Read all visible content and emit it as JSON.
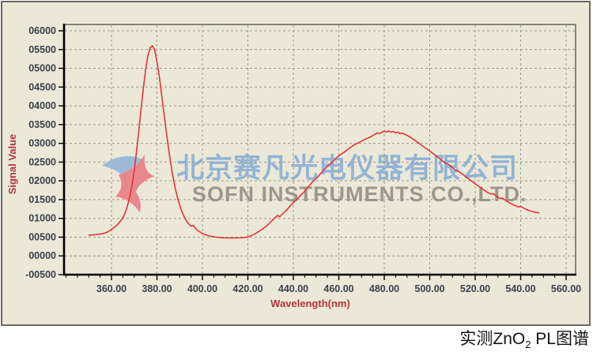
{
  "watermark": {
    "line1": "北京赛凡光电仪器有限公司",
    "line2": "SOFN INSTRUMENTS CO.,LTD.",
    "line1_color": "#84aad2",
    "line2_color": "#948e84",
    "logo_colors": {
      "wing": "#9db9d6",
      "swoosh": "#e8888c"
    }
  },
  "caption": {
    "prefix": "实测ZnO",
    "subscript": "2",
    "suffix": " PL图谱"
  },
  "chart_data": {
    "type": "line",
    "title": "",
    "xlabel": "Wavelength(nm)",
    "ylabel": "Signal Value",
    "grid": true,
    "legend": "none",
    "xlim": [
      339.13,
      564.17
    ],
    "ylim": [
      -500,
      6168
    ],
    "x_minor_tick_step": 5,
    "x_minor_tick_range": [
      340,
      560
    ],
    "x_ticks": [
      {
        "value": 360,
        "label": "360.00"
      },
      {
        "value": 380,
        "label": "380.00"
      },
      {
        "value": 400,
        "label": "400.00"
      },
      {
        "value": 420,
        "label": "420.00"
      },
      {
        "value": 440,
        "label": "440.00"
      },
      {
        "value": 460,
        "label": "460.00"
      },
      {
        "value": 480,
        "label": "480.00"
      },
      {
        "value": 500,
        "label": "500.00"
      },
      {
        "value": 520,
        "label": "520.00"
      },
      {
        "value": 540,
        "label": "540.00"
      },
      {
        "value": 560,
        "label": "560.00"
      }
    ],
    "y_ticks": [
      {
        "value": 6000,
        "label": "06000"
      },
      {
        "value": 5500,
        "label": "05500"
      },
      {
        "value": 5000,
        "label": "05000"
      },
      {
        "value": 4500,
        "label": "04500"
      },
      {
        "value": 4000,
        "label": "04000"
      },
      {
        "value": 3500,
        "label": "03500"
      },
      {
        "value": 3000,
        "label": "03000"
      },
      {
        "value": 2500,
        "label": "02500"
      },
      {
        "value": 2000,
        "label": "02000"
      },
      {
        "value": 1500,
        "label": "01500"
      },
      {
        "value": 1000,
        "label": "01000"
      },
      {
        "value": 500,
        "label": "00500"
      },
      {
        "value": 0,
        "label": "00000"
      },
      {
        "value": -500,
        "label": "-00500"
      }
    ],
    "colors": {
      "curve": "#e5323b",
      "grid": "#9c998c",
      "axis": "#000000",
      "frame": "#45443e",
      "tick_text": "#3a4149",
      "axis_title": "#b5333d",
      "plot_bg": "#ebe8d8"
    },
    "series": [
      {
        "name": "ZnO2 PL signal",
        "color": "#e5323b",
        "points": [
          [
            350,
            552
          ],
          [
            352,
            560
          ],
          [
            354,
            572
          ],
          [
            356,
            592
          ],
          [
            358,
            630
          ],
          [
            360,
            705
          ],
          [
            361,
            750
          ],
          [
            362,
            800
          ],
          [
            363,
            858
          ],
          [
            364,
            930
          ],
          [
            365,
            1015
          ],
          [
            366,
            1150
          ],
          [
            367,
            1330
          ],
          [
            368,
            1565
          ],
          [
            369,
            1870
          ],
          [
            370,
            2260
          ],
          [
            371,
            2770
          ],
          [
            372,
            3320
          ],
          [
            373,
            3920
          ],
          [
            374,
            4460
          ],
          [
            375,
            4950
          ],
          [
            376,
            5330
          ],
          [
            377,
            5545
          ],
          [
            378,
            5600
          ],
          [
            379,
            5490
          ],
          [
            380,
            5180
          ],
          [
            381,
            4790
          ],
          [
            382,
            4320
          ],
          [
            383,
            3845
          ],
          [
            384,
            3360
          ],
          [
            385,
            2905
          ],
          [
            386,
            2480
          ],
          [
            387,
            2120
          ],
          [
            388,
            1815
          ],
          [
            389,
            1560
          ],
          [
            390,
            1350
          ],
          [
            391,
            1180
          ],
          [
            392,
            1042
          ],
          [
            393,
            930
          ],
          [
            394,
            848
          ],
          [
            395,
            790
          ],
          [
            396,
            812
          ],
          [
            397,
            730
          ],
          [
            398,
            672
          ],
          [
            399,
            635
          ],
          [
            400,
            600
          ],
          [
            401,
            572
          ],
          [
            402,
            550
          ],
          [
            403,
            533
          ],
          [
            404,
            519
          ],
          [
            405,
            508
          ],
          [
            406,
            499
          ],
          [
            407,
            492
          ],
          [
            408,
            487
          ],
          [
            409,
            483
          ],
          [
            410,
            481
          ],
          [
            411,
            478
          ],
          [
            412,
            480
          ],
          [
            413,
            476
          ],
          [
            414,
            479
          ],
          [
            415,
            482
          ],
          [
            416,
            479
          ],
          [
            417,
            484
          ],
          [
            418,
            489
          ],
          [
            419,
            495
          ],
          [
            420,
            505
          ],
          [
            421,
            528
          ],
          [
            422,
            553
          ],
          [
            423,
            584
          ],
          [
            424,
            622
          ],
          [
            425,
            658
          ],
          [
            426,
            698
          ],
          [
            427,
            742
          ],
          [
            428,
            790
          ],
          [
            429,
            845
          ],
          [
            430,
            905
          ],
          [
            431,
            962
          ],
          [
            432,
            1022
          ],
          [
            433,
            1075
          ],
          [
            434,
            1048
          ],
          [
            435,
            1102
          ],
          [
            436,
            1160
          ],
          [
            437,
            1222
          ],
          [
            438,
            1288
          ],
          [
            439,
            1355
          ],
          [
            440,
            1422
          ],
          [
            441,
            1470
          ],
          [
            442,
            1535
          ],
          [
            443,
            1600
          ],
          [
            444,
            1662
          ],
          [
            445,
            1722
          ],
          [
            446,
            1800
          ],
          [
            447,
            1868
          ],
          [
            448,
            1942
          ],
          [
            449,
            2005
          ],
          [
            450,
            2062
          ],
          [
            451,
            2125
          ],
          [
            452,
            2195
          ],
          [
            453,
            2262
          ],
          [
            454,
            2330
          ],
          [
            455,
            2388
          ],
          [
            456,
            2438
          ],
          [
            457,
            2498
          ],
          [
            458,
            2555
          ],
          [
            459,
            2612
          ],
          [
            460,
            2668
          ],
          [
            461,
            2712
          ],
          [
            462,
            2748
          ],
          [
            463,
            2795
          ],
          [
            464,
            2842
          ],
          [
            465,
            2885
          ],
          [
            466,
            2928
          ],
          [
            467,
            2962
          ],
          [
            468,
            2995
          ],
          [
            469,
            3028
          ],
          [
            470,
            3060
          ],
          [
            471,
            3092
          ],
          [
            472,
            3122
          ],
          [
            473,
            3148
          ],
          [
            474,
            3172
          ],
          [
            475,
            3208
          ],
          [
            476,
            3248
          ],
          [
            477,
            3282
          ],
          [
            478,
            3262
          ],
          [
            479,
            3298
          ],
          [
            480,
            3322
          ],
          [
            481,
            3302
          ],
          [
            482,
            3330
          ],
          [
            483,
            3298
          ],
          [
            484,
            3318
          ],
          [
            485,
            3280
          ],
          [
            486,
            3302
          ],
          [
            487,
            3262
          ],
          [
            488,
            3272
          ],
          [
            489,
            3238
          ],
          [
            490,
            3212
          ],
          [
            491,
            3180
          ],
          [
            492,
            3142
          ],
          [
            493,
            3102
          ],
          [
            494,
            3060
          ],
          [
            495,
            3015
          ],
          [
            496,
            2970
          ],
          [
            497,
            2925
          ],
          [
            498,
            2878
          ],
          [
            499,
            2838
          ],
          [
            500,
            2798
          ],
          [
            501,
            2750
          ],
          [
            502,
            2702
          ],
          [
            503,
            2655
          ],
          [
            504,
            2608
          ],
          [
            505,
            2562
          ],
          [
            506,
            2515
          ],
          [
            507,
            2470
          ],
          [
            508,
            2448
          ],
          [
            509,
            2408
          ],
          [
            510,
            2350
          ],
          [
            511,
            2295
          ],
          [
            512,
            2262
          ],
          [
            513,
            2238
          ],
          [
            514,
            2195
          ],
          [
            515,
            2150
          ],
          [
            516,
            2105
          ],
          [
            517,
            2060
          ],
          [
            518,
            2012
          ],
          [
            519,
            1965
          ],
          [
            520,
            1920
          ],
          [
            521,
            1876
          ],
          [
            522,
            1832
          ],
          [
            523,
            1790
          ],
          [
            524,
            1750
          ],
          [
            525,
            1710
          ],
          [
            526,
            1672
          ],
          [
            527,
            1650
          ],
          [
            528,
            1660
          ],
          [
            529,
            1610
          ],
          [
            530,
            1565
          ],
          [
            531,
            1528
          ],
          [
            532,
            1538
          ],
          [
            533,
            1495
          ],
          [
            534,
            1452
          ],
          [
            535,
            1418
          ],
          [
            536,
            1388
          ],
          [
            537,
            1358
          ],
          [
            538,
            1330
          ],
          [
            539,
            1302
          ],
          [
            540,
            1320
          ],
          [
            541,
            1286
          ],
          [
            542,
            1252
          ],
          [
            543,
            1225
          ],
          [
            544,
            1202
          ],
          [
            545,
            1185
          ],
          [
            546,
            1170
          ],
          [
            547,
            1156
          ],
          [
            548,
            1146
          ]
        ]
      }
    ]
  }
}
